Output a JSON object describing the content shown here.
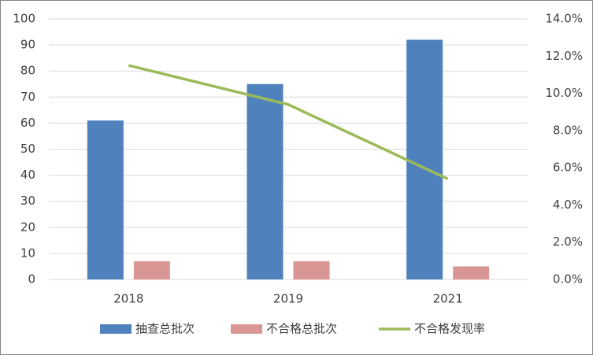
{
  "chart_data": {
    "type": "bar",
    "categories": [
      "2018",
      "2019",
      "2021"
    ],
    "series": [
      {
        "name": "抽查总批次",
        "color": "#4f81bd",
        "values": [
          61,
          75,
          92
        ]
      },
      {
        "name": "不合格总批次",
        "color": "#d99694",
        "values": [
          7,
          7,
          5
        ]
      },
      {
        "name": "不合格发现率",
        "color": "#9bbb59",
        "type": "line",
        "axis": "y2",
        "values": [
          11.5,
          9.4,
          5.4
        ]
      }
    ],
    "ylim": [
      0,
      100
    ],
    "yticks": [
      0,
      10,
      20,
      30,
      40,
      50,
      60,
      70,
      80,
      90,
      100
    ],
    "y2lim": [
      0,
      14
    ],
    "y2ticks": [
      {
        "value": 0,
        "label": "0.0%"
      },
      {
        "value": 2,
        "label": "2.0%"
      },
      {
        "value": 4,
        "label": "4.0%"
      },
      {
        "value": 6,
        "label": "6.0%"
      },
      {
        "value": 8,
        "label": "8.0%"
      },
      {
        "value": 10,
        "label": "10.0%"
      },
      {
        "value": 12,
        "label": "12.0%"
      },
      {
        "value": 14,
        "label": "14.0%"
      }
    ],
    "grid": true,
    "legend": "bottom"
  }
}
